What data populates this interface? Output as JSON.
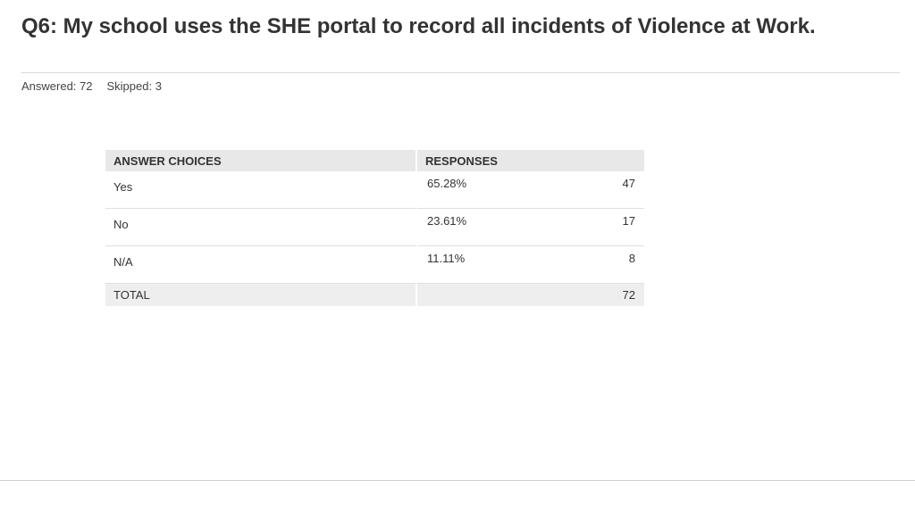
{
  "question": {
    "title": "Q6: My school uses the SHE portal to record all incidents of Violence at Work."
  },
  "stats": {
    "answered_label": "Answered: 72",
    "skipped_label": "Skipped: 3"
  },
  "table": {
    "headers": [
      "ANSWER CHOICES",
      "RESPONSES"
    ],
    "rows": [
      {
        "choice": "Yes",
        "percent": "65.28%",
        "count": "47"
      },
      {
        "choice": "No",
        "percent": "23.61%",
        "count": "17"
      },
      {
        "choice": "N/A",
        "percent": "11.11%",
        "count": "8"
      }
    ],
    "total": {
      "label": "TOTAL",
      "count": "72"
    }
  },
  "chart_data": {
    "type": "table",
    "columns": [
      "ANSWER CHOICES",
      "RESPONSES"
    ],
    "categories": [
      "Yes",
      "No",
      "N/A"
    ],
    "series": [
      {
        "name": "RESPONSES",
        "percent": [
          65.28,
          23.61,
          11.11
        ],
        "counts": [
          47,
          17,
          8
        ]
      }
    ],
    "total": 72,
    "answered": 72,
    "skipped": 3
  }
}
